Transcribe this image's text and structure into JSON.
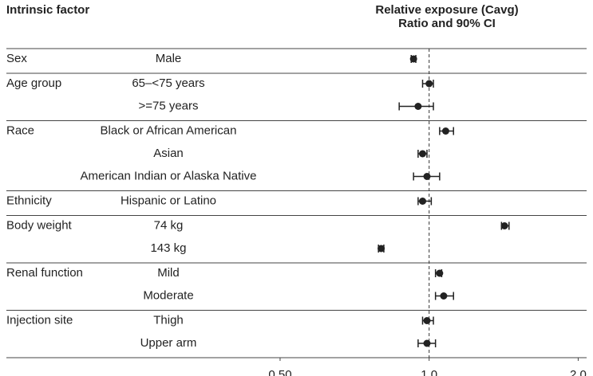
{
  "chart_data": {
    "type": "forest",
    "header_left": "Intrinsic factor",
    "header_right": [
      "Relative exposure (Cavg)",
      "Ratio and 90% CI"
    ],
    "log_scale": true,
    "reference_line": 1,
    "xlim": [
      0.14,
      2.08
    ],
    "xticks": [
      {
        "value": 0.5,
        "label": "0.50"
      },
      {
        "value": 1,
        "label": "1.0"
      },
      {
        "value": 2,
        "label": "2.0"
      }
    ],
    "color": "#222222",
    "groups": [
      {
        "name": "Sex",
        "rows": [
          {
            "label": "Male",
            "ratio": 0.93,
            "ci_low": 0.92,
            "ci_high": 0.94
          }
        ]
      },
      {
        "name": "Age group",
        "rows": [
          {
            "label": "65–<75 years",
            "ratio": 1.0,
            "ci_low": 0.97,
            "ci_high": 1.02
          },
          {
            "label": ">=75 years",
            "ratio": 0.95,
            "ci_low": 0.87,
            "ci_high": 1.02
          }
        ]
      },
      {
        "name": "Race",
        "rows": [
          {
            "label": "Black or African American",
            "ratio": 1.08,
            "ci_low": 1.05,
            "ci_high": 1.12
          },
          {
            "label": "Asian",
            "ratio": 0.97,
            "ci_low": 0.95,
            "ci_high": 0.99
          },
          {
            "label": "American Indian or Alaska Native",
            "ratio": 0.99,
            "ci_low": 0.93,
            "ci_high": 1.05
          }
        ]
      },
      {
        "name": "Ethnicity",
        "rows": [
          {
            "label": "Hispanic or Latino",
            "ratio": 0.97,
            "ci_low": 0.95,
            "ci_high": 1.01
          }
        ]
      },
      {
        "name": "Body weight",
        "rows": [
          {
            "label": "74 kg",
            "ratio": 1.42,
            "ci_low": 1.4,
            "ci_high": 1.45
          },
          {
            "label": "143 kg",
            "ratio": 0.8,
            "ci_low": 0.79,
            "ci_high": 0.81
          }
        ]
      },
      {
        "name": "Renal function",
        "rows": [
          {
            "label": "Mild",
            "ratio": 1.05,
            "ci_low": 1.03,
            "ci_high": 1.06
          },
          {
            "label": "Moderate",
            "ratio": 1.07,
            "ci_low": 1.03,
            "ci_high": 1.12
          }
        ]
      },
      {
        "name": "Injection site",
        "rows": [
          {
            "label": "Thigh",
            "ratio": 0.99,
            "ci_low": 0.97,
            "ci_high": 1.02
          },
          {
            "label": "Upper arm",
            "ratio": 0.99,
            "ci_low": 0.95,
            "ci_high": 1.03
          }
        ]
      }
    ]
  }
}
